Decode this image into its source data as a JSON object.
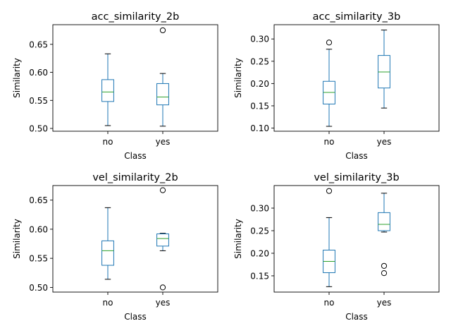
{
  "chart_data": [
    {
      "type": "box",
      "title": "acc_similarity_2b",
      "xlabel": "Class",
      "ylabel": "Similarity",
      "categories": [
        "no",
        "yes"
      ],
      "ylim": [
        0.495,
        0.685
      ],
      "yticks": [
        0.5,
        0.55,
        0.6,
        0.65
      ],
      "yticklabels": [
        "0.50",
        "0.55",
        "0.60",
        "0.65"
      ],
      "boxes": [
        {
          "whisker_low": 0.505,
          "q1": 0.548,
          "median": 0.565,
          "q3": 0.587,
          "whisker_high": 0.633,
          "outliers": []
        },
        {
          "whisker_low": 0.504,
          "q1": 0.542,
          "median": 0.556,
          "q3": 0.58,
          "whisker_high": 0.598,
          "outliers": [
            0.675
          ]
        }
      ]
    },
    {
      "type": "box",
      "title": "acc_similarity_3b",
      "xlabel": "Class",
      "ylabel": "Similarity",
      "categories": [
        "no",
        "yes"
      ],
      "ylim": [
        0.093,
        0.332
      ],
      "yticks": [
        0.1,
        0.15,
        0.2,
        0.25,
        0.3
      ],
      "yticklabels": [
        "0.10",
        "0.15",
        "0.20",
        "0.25",
        "0.30"
      ],
      "boxes": [
        {
          "whisker_low": 0.104,
          "q1": 0.154,
          "median": 0.18,
          "q3": 0.205,
          "whisker_high": 0.277,
          "outliers": [
            0.292
          ]
        },
        {
          "whisker_low": 0.145,
          "q1": 0.19,
          "median": 0.226,
          "q3": 0.263,
          "whisker_high": 0.32,
          "outliers": []
        }
      ]
    },
    {
      "type": "box",
      "title": "vel_similarity_2b",
      "xlabel": "Class",
      "ylabel": "Similarity",
      "categories": [
        "no",
        "yes"
      ],
      "ylim": [
        0.492,
        0.675
      ],
      "yticks": [
        0.5,
        0.55,
        0.6,
        0.65
      ],
      "yticklabels": [
        "0.50",
        "0.55",
        "0.60",
        "0.65"
      ],
      "boxes": [
        {
          "whisker_low": 0.514,
          "q1": 0.538,
          "median": 0.563,
          "q3": 0.58,
          "whisker_high": 0.637,
          "outliers": []
        },
        {
          "whisker_low": 0.563,
          "q1": 0.571,
          "median": 0.584,
          "q3": 0.592,
          "whisker_high": 0.593,
          "outliers": [
            0.667,
            0.5
          ]
        }
      ]
    },
    {
      "type": "box",
      "title": "vel_similarity_3b",
      "xlabel": "Class",
      "ylabel": "Similarity",
      "categories": [
        "no",
        "yes"
      ],
      "ylim": [
        0.114,
        0.35
      ],
      "yticks": [
        0.15,
        0.2,
        0.25,
        0.3
      ],
      "yticklabels": [
        "0.15",
        "0.20",
        "0.25",
        "0.30"
      ],
      "boxes": [
        {
          "whisker_low": 0.126,
          "q1": 0.157,
          "median": 0.182,
          "q3": 0.207,
          "whisker_high": 0.279,
          "outliers": [
            0.338
          ]
        },
        {
          "whisker_low": 0.247,
          "q1": 0.25,
          "median": 0.264,
          "q3": 0.29,
          "whisker_high": 0.333,
          "outliers": [
            0.172,
            0.156
          ]
        }
      ]
    }
  ],
  "colors": {
    "box": "#1f77b4",
    "median": "#2ca02c",
    "whisker": "#1f77b4",
    "cap": "#000000",
    "axis": "#000000",
    "flier": "#000000"
  }
}
